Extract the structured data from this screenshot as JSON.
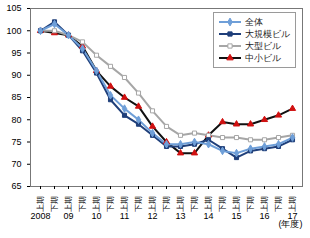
{
  "chart_data": {
    "type": "line",
    "categories": [
      "上期",
      "下期",
      "上期",
      "下期",
      "上期",
      "下期",
      "上期",
      "下期",
      "上期",
      "下期",
      "上期",
      "下期",
      "上期",
      "下期",
      "上期",
      "下期",
      "上期",
      "下期",
      "上期"
    ],
    "years": [
      "2008",
      null,
      "09",
      null,
      "10",
      null,
      "11",
      null,
      "12",
      null,
      "13",
      null,
      "14",
      null,
      "15",
      null,
      "16",
      null,
      "17"
    ],
    "x_label": "(年度)",
    "ylim": [
      65,
      105
    ],
    "yticks": [
      65,
      70,
      75,
      80,
      85,
      90,
      95,
      100,
      105
    ],
    "grid": false,
    "legend": "top-right",
    "series": [
      {
        "name": "全体",
        "color": "#6f9fd8",
        "marker": "diamond",
        "values": [
          100,
          101.5,
          99,
          96,
          91,
          85.5,
          82.5,
          80,
          77,
          74.5,
          74.5,
          75,
          74.5,
          73,
          72.5,
          73.5,
          74,
          74.5,
          76
        ]
      },
      {
        "name": "大規模ビル",
        "color": "#1f3f7a",
        "marker": "square",
        "values": [
          100,
          102,
          99,
          95.5,
          90.5,
          84.5,
          81,
          79,
          76.5,
          74,
          74,
          74.5,
          75.5,
          73.5,
          71.5,
          73,
          73.5,
          74,
          75.5
        ]
      },
      {
        "name": "大型ビル",
        "color": "#a6a6a6",
        "marker": "open-square",
        "values": [
          100,
          100,
          99,
          97.5,
          94.5,
          92,
          89.5,
          86,
          82,
          78.5,
          76.5,
          77,
          76.5,
          76,
          76,
          75.5,
          75.5,
          76,
          76.5
        ]
      },
      {
        "name": "中小ビル",
        "color": "#111111",
        "marker": "triangle",
        "values": [
          100,
          99.5,
          99,
          96.5,
          91,
          87.5,
          85,
          83,
          78.5,
          75,
          72.5,
          72.5,
          76.5,
          79.5,
          79,
          79,
          80,
          81,
          82.5
        ]
      }
    ]
  }
}
